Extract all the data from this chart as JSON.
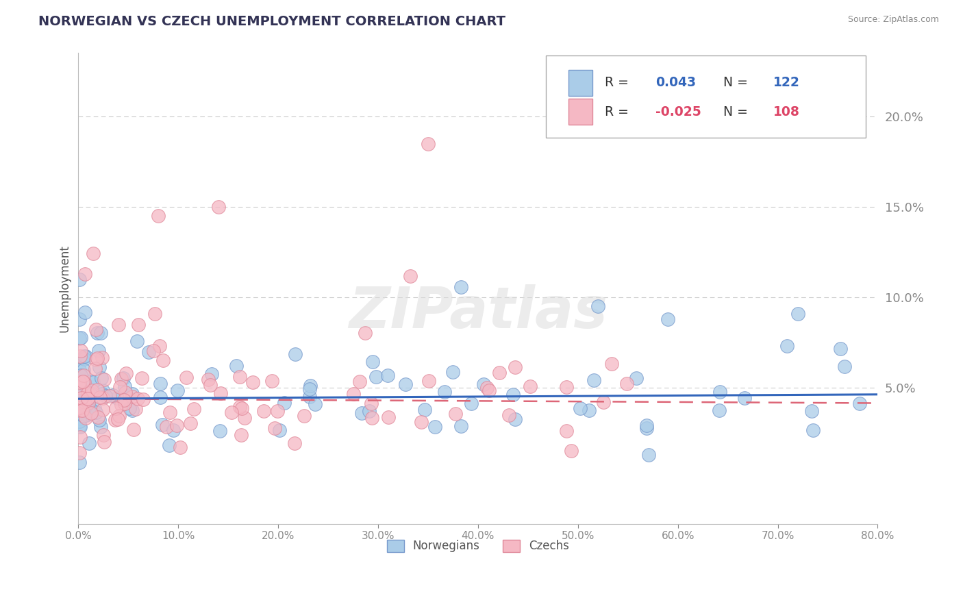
{
  "title": "NORWEGIAN VS CZECH UNEMPLOYMENT CORRELATION CHART",
  "source": "Source: ZipAtlas.com",
  "ylabel": "Unemployment",
  "xlim": [
    0.0,
    0.8
  ],
  "ylim": [
    -0.025,
    0.235
  ],
  "yticks": [
    0.05,
    0.1,
    0.15,
    0.2
  ],
  "ytick_labels": [
    "5.0%",
    "10.0%",
    "15.0%",
    "20.0%"
  ],
  "xticks": [
    0.0,
    0.1,
    0.2,
    0.3,
    0.4,
    0.5,
    0.6,
    0.7,
    0.8
  ],
  "xtick_labels": [
    "0.0%",
    "10.0%",
    "20.0%",
    "30.0%",
    "40.0%",
    "50.0%",
    "60.0%",
    "70.0%",
    "80.0%"
  ],
  "norwegian_color": "#AACCE8",
  "norwegian_edge": "#7799CC",
  "czech_color": "#F5B8C4",
  "czech_edge": "#E08899",
  "norwegian_R": 0.043,
  "norwegian_N": 122,
  "czech_R": -0.025,
  "czech_N": 108,
  "trend_norw_color": "#3366BB",
  "trend_czech_color": "#DD6677",
  "watermark": "ZIPatlas",
  "background_color": "#FFFFFF",
  "grid_color": "#CCCCCC",
  "title_color": "#333355",
  "ytick_color": "#4477CC",
  "xtick_color": "#555555",
  "ylabel_color": "#555555",
  "source_color": "#888888",
  "legend_R_norw_color": "#3366BB",
  "legend_R_czech_color": "#DD4466",
  "legend_N_norw_color": "#3366BB",
  "legend_N_czech_color": "#DD4466"
}
